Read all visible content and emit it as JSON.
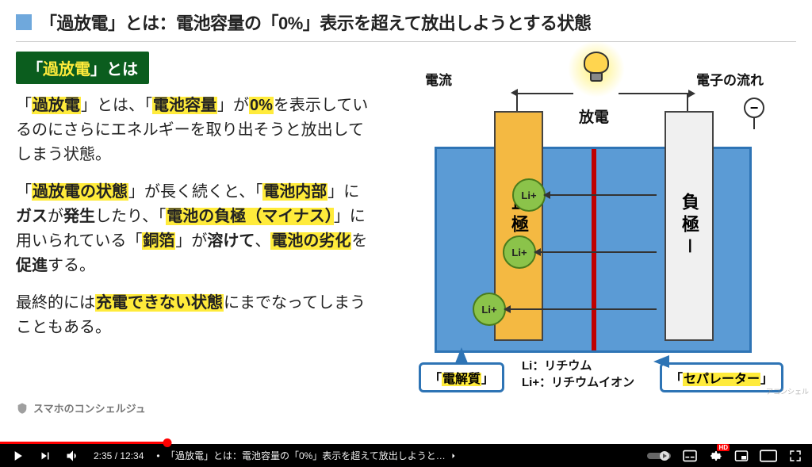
{
  "title": "「過放電」とは：電池容量の「0%」表示を超えて放出しようとする状態",
  "badge": {
    "pre": "「",
    "hl": "過放電",
    "post": "」とは"
  },
  "para1": {
    "t1": "「",
    "h1": "過放電",
    "t2": "」とは、「",
    "h2": "電池容量",
    "t3": "」が",
    "h3": "0%",
    "t4": "を表示しているのにさらにエネルギーを取り出そうと放出してしまう状態。"
  },
  "para2": {
    "t1": "「",
    "h1": "過放電の状態",
    "t2": "」が長く続くと、「",
    "h2": "電池内部",
    "t3": "」に",
    "b1": "ガス",
    "t4": "が",
    "b2": "発生",
    "t5": "したり、「",
    "h3": "電池の負極（マイナス）",
    "t6": "」に用いられている「",
    "h4": "銅箔",
    "t7": "」が",
    "b3": "溶けて",
    "t8": "、",
    "h5": "電池の劣化",
    "t9": "を",
    "b4": "促進",
    "t10": "する。"
  },
  "para3": {
    "t1": "最終的には",
    "h1": "充電できない状態",
    "t2": "にまでなってしまうこともある。"
  },
  "diagram": {
    "label_current": "電流",
    "label_electron": "電子の流れ",
    "label_discharge": "放電",
    "positive": "正極＋",
    "negative": "負極－",
    "ion": "Li+",
    "callout_electrolyte": "電解質",
    "callout_separator": "セパレーター",
    "legend_li": "Li：リチウム",
    "legend_lip": "Li+：リチウムイオン",
    "minus": "−",
    "colors": {
      "box_fill": "#5b9bd5",
      "box_border": "#2e74b5",
      "separator": "#c00000",
      "positive_fill": "#f4b942",
      "negative_fill": "#f0f0f0",
      "ion_fill": "#8bc34a",
      "highlight": "#ffeb3b",
      "badge_bg": "#0b5d1e"
    }
  },
  "player": {
    "current": "2:35",
    "duration": "12:34",
    "chapter": "「過放電」とは：電池容量の「0%」表示を超えて放出しようと…",
    "hd": "HD",
    "played_pct": 20.6,
    "loaded_pct": 32
  },
  "channel": "スマホのコンシェルジュ",
  "watermark": "アコンシェル"
}
